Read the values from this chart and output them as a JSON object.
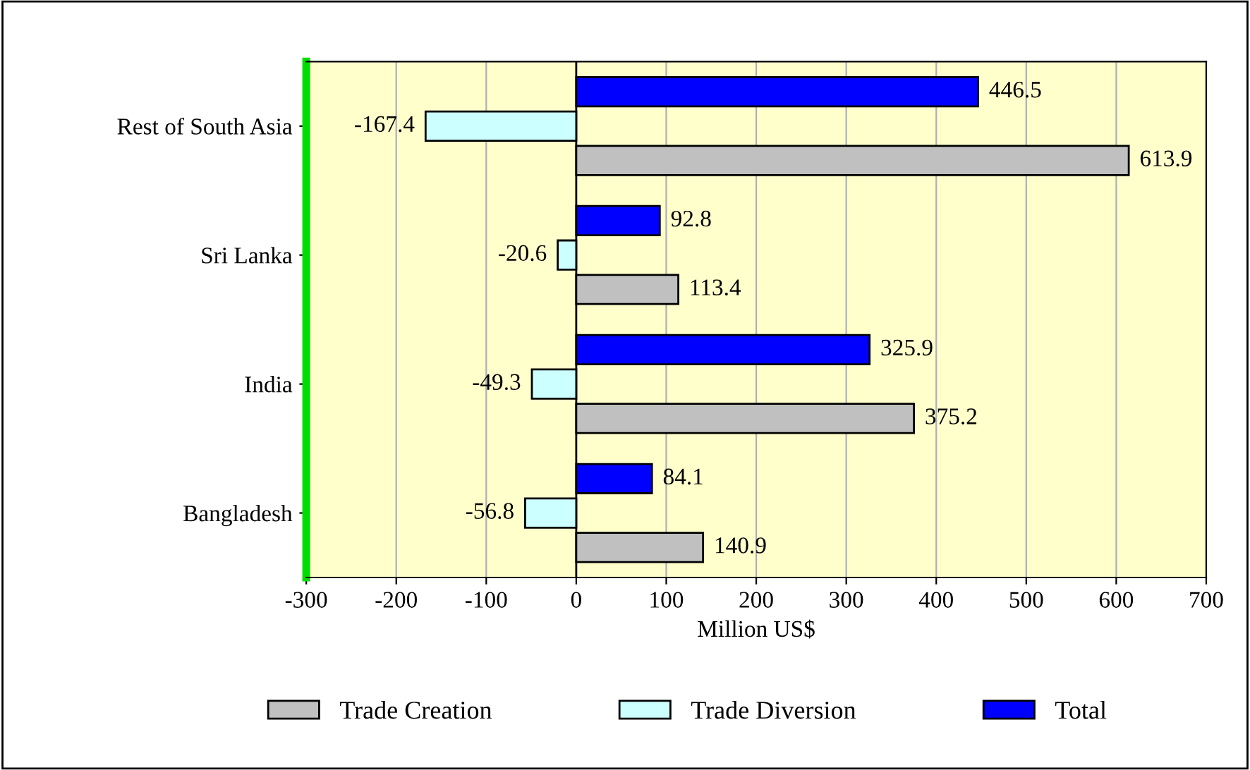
{
  "chart_data": {
    "type": "bar",
    "orientation": "horizontal",
    "xlabel": "Million US$",
    "categories": [
      "Rest of South Asia",
      "Sri Lanka",
      "India",
      "Bangladesh"
    ],
    "series": [
      {
        "name": "Trade Creation",
        "color": "#c0c0c0",
        "values": [
          613.9,
          113.4,
          375.2,
          140.9
        ]
      },
      {
        "name": "Trade Diversion",
        "color": "#ccffff",
        "values": [
          -167.4,
          -20.6,
          -49.3,
          -56.8
        ]
      },
      {
        "name": "Total",
        "color": "#0000ff",
        "values": [
          446.5,
          92.8,
          325.9,
          84.1
        ]
      }
    ],
    "xlim": [
      -300,
      700
    ],
    "xticks": [
      -300,
      -200,
      -100,
      0,
      100,
      200,
      300,
      400,
      500,
      600,
      700
    ],
    "grid": "x",
    "legend": "bottom",
    "data_labels": true
  }
}
